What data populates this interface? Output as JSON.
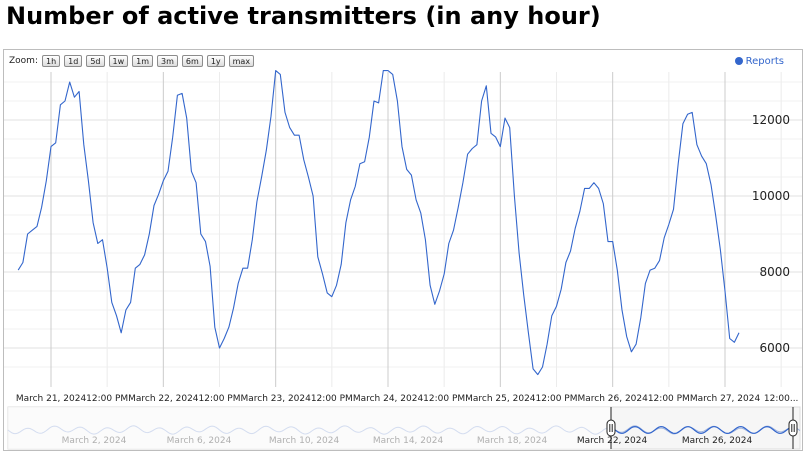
{
  "page": {
    "title": "Number of active transmitters (in any hour)"
  },
  "zoom": {
    "label": "Zoom:",
    "buttons": [
      "1h",
      "1d",
      "5d",
      "1w",
      "1m",
      "3m",
      "6m",
      "1y",
      "max"
    ]
  },
  "legend": {
    "series_name": "Reports",
    "color": "#3366cc"
  },
  "navigator": {
    "labels": [
      "March 2, 2024",
      "March 6, 2024",
      "March 10, 2024",
      "March 14, 2024",
      "March 18, 2024",
      "March 22, 2024",
      "March 26, 2024"
    ]
  },
  "chart_data": {
    "type": "line",
    "title": "Number of active transmitters (in any hour)",
    "x_ticks": [
      {
        "value": "2024-03-21 00:00",
        "label": "March 21, 2024"
      },
      {
        "value": "2024-03-21 12:00",
        "label": "12:00 PM"
      },
      {
        "value": "2024-03-22 00:00",
        "label": "March 22, 2024"
      },
      {
        "value": "2024-03-22 12:00",
        "label": "12:00 PM"
      },
      {
        "value": "2024-03-23 00:00",
        "label": "March 23, 2024"
      },
      {
        "value": "2024-03-23 12:00",
        "label": "12:00 PM"
      },
      {
        "value": "2024-03-24 00:00",
        "label": "March 24, 2024"
      },
      {
        "value": "2024-03-24 12:00",
        "label": "12:00 PM"
      },
      {
        "value": "2024-03-25 00:00",
        "label": "March 25, 2024"
      },
      {
        "value": "2024-03-25 12:00",
        "label": "12:00 PM"
      },
      {
        "value": "2024-03-26 00:00",
        "label": "March 26, 2024"
      },
      {
        "value": "2024-03-26 12:00",
        "label": "12:00 PM"
      },
      {
        "value": "2024-03-27 00:00",
        "label": "March 27, 2024"
      },
      {
        "value": "2024-03-27 12:00",
        "label": "12:00..."
      }
    ],
    "y_ticks": [
      6000,
      8000,
      10000,
      12000
    ],
    "ylim": [
      5200,
      13400
    ],
    "xlim": [
      "2024-03-20 17:00",
      "2024-03-28 00:00"
    ],
    "grid": true,
    "legend_position": "top-right",
    "series": [
      {
        "name": "Reports",
        "color": "#3366cc",
        "points": [
          [
            "2024-03-20 17:00",
            8050
          ],
          [
            "2024-03-20 18:00",
            8250
          ],
          [
            "2024-03-20 19:00",
            9000
          ],
          [
            "2024-03-20 20:00",
            9100
          ],
          [
            "2024-03-20 21:00",
            9200
          ],
          [
            "2024-03-20 22:00",
            9700
          ],
          [
            "2024-03-20 23:00",
            10400
          ],
          [
            "2024-03-21 00:00",
            11300
          ],
          [
            "2024-03-21 01:00",
            11400
          ],
          [
            "2024-03-21 02:00",
            12400
          ],
          [
            "2024-03-21 03:00",
            12500
          ],
          [
            "2024-03-21 04:00",
            13000
          ],
          [
            "2024-03-21 05:00",
            12600
          ],
          [
            "2024-03-21 06:00",
            12750
          ],
          [
            "2024-03-21 07:00",
            11350
          ],
          [
            "2024-03-21 08:00",
            10400
          ],
          [
            "2024-03-21 09:00",
            9300
          ],
          [
            "2024-03-21 10:00",
            8750
          ],
          [
            "2024-03-21 11:00",
            8850
          ],
          [
            "2024-03-21 12:00",
            8100
          ],
          [
            "2024-03-21 13:00",
            7200
          ],
          [
            "2024-03-21 14:00",
            6850
          ],
          [
            "2024-03-21 15:00",
            6400
          ],
          [
            "2024-03-21 16:00",
            7000
          ],
          [
            "2024-03-21 17:00",
            7200
          ],
          [
            "2024-03-21 18:00",
            8100
          ],
          [
            "2024-03-21 19:00",
            8200
          ],
          [
            "2024-03-21 20:00",
            8450
          ],
          [
            "2024-03-21 21:00",
            9000
          ],
          [
            "2024-03-21 22:00",
            9750
          ],
          [
            "2024-03-21 23:00",
            10050
          ],
          [
            "2024-03-22 00:00",
            10400
          ],
          [
            "2024-03-22 01:00",
            10650
          ],
          [
            "2024-03-22 02:00",
            11550
          ],
          [
            "2024-03-22 03:00",
            12650
          ],
          [
            "2024-03-22 04:00",
            12700
          ],
          [
            "2024-03-22 05:00",
            12050
          ],
          [
            "2024-03-22 06:00",
            10650
          ],
          [
            "2024-03-22 07:00",
            10350
          ],
          [
            "2024-03-22 08:00",
            9000
          ],
          [
            "2024-03-22 09:00",
            8800
          ],
          [
            "2024-03-22 10:00",
            8150
          ],
          [
            "2024-03-22 11:00",
            6550
          ],
          [
            "2024-03-22 12:00",
            6000
          ],
          [
            "2024-03-22 13:00",
            6250
          ],
          [
            "2024-03-22 14:00",
            6550
          ],
          [
            "2024-03-22 15:00",
            7050
          ],
          [
            "2024-03-22 16:00",
            7700
          ],
          [
            "2024-03-22 17:00",
            8100
          ],
          [
            "2024-03-22 18:00",
            8100
          ],
          [
            "2024-03-22 19:00",
            8850
          ],
          [
            "2024-03-22 20:00",
            9850
          ],
          [
            "2024-03-22 21:00",
            10500
          ],
          [
            "2024-03-22 22:00",
            11200
          ],
          [
            "2024-03-22 23:00",
            12100
          ],
          [
            "2024-03-23 00:00",
            13300
          ],
          [
            "2024-03-23 01:00",
            13200
          ],
          [
            "2024-03-23 02:00",
            12200
          ],
          [
            "2024-03-23 03:00",
            11800
          ],
          [
            "2024-03-23 04:00",
            11600
          ],
          [
            "2024-03-23 05:00",
            11600
          ],
          [
            "2024-03-23 06:00",
            10950
          ],
          [
            "2024-03-23 07:00",
            10500
          ],
          [
            "2024-03-23 08:00",
            10000
          ],
          [
            "2024-03-23 09:00",
            8400
          ],
          [
            "2024-03-23 10:00",
            7950
          ],
          [
            "2024-03-23 11:00",
            7450
          ],
          [
            "2024-03-23 12:00",
            7350
          ],
          [
            "2024-03-23 13:00",
            7650
          ],
          [
            "2024-03-23 14:00",
            8200
          ],
          [
            "2024-03-23 15:00",
            9300
          ],
          [
            "2024-03-23 16:00",
            9900
          ],
          [
            "2024-03-23 17:00",
            10250
          ],
          [
            "2024-03-23 18:00",
            10850
          ],
          [
            "2024-03-23 19:00",
            10900
          ],
          [
            "2024-03-23 20:00",
            11550
          ],
          [
            "2024-03-23 21:00",
            12500
          ],
          [
            "2024-03-23 22:00",
            12450
          ],
          [
            "2024-03-23 23:00",
            13300
          ],
          [
            "2024-03-24 00:00",
            13300
          ],
          [
            "2024-03-24 01:00",
            13200
          ],
          [
            "2024-03-24 02:00",
            12500
          ],
          [
            "2024-03-24 03:00",
            11300
          ],
          [
            "2024-03-24 04:00",
            10700
          ],
          [
            "2024-03-24 05:00",
            10550
          ],
          [
            "2024-03-24 06:00",
            9900
          ],
          [
            "2024-03-24 07:00",
            9550
          ],
          [
            "2024-03-24 08:00",
            8850
          ],
          [
            "2024-03-24 09:00",
            7650
          ],
          [
            "2024-03-24 10:00",
            7150
          ],
          [
            "2024-03-24 11:00",
            7500
          ],
          [
            "2024-03-24 12:00",
            7950
          ],
          [
            "2024-03-24 13:00",
            8750
          ],
          [
            "2024-03-24 14:00",
            9100
          ],
          [
            "2024-03-24 15:00",
            9700
          ],
          [
            "2024-03-24 16:00",
            10350
          ],
          [
            "2024-03-24 17:00",
            11100
          ],
          [
            "2024-03-24 18:00",
            11250
          ],
          [
            "2024-03-24 19:00",
            11350
          ],
          [
            "2024-03-24 20:00",
            12500
          ],
          [
            "2024-03-24 21:00",
            12900
          ],
          [
            "2024-03-24 22:00",
            11650
          ],
          [
            "2024-03-24 23:00",
            11550
          ],
          [
            "2024-03-25 00:00",
            11300
          ],
          [
            "2024-03-25 01:00",
            12050
          ],
          [
            "2024-03-25 02:00",
            11800
          ],
          [
            "2024-03-25 03:00",
            10000
          ],
          [
            "2024-03-25 04:00",
            8500
          ],
          [
            "2024-03-25 05:00",
            7400
          ],
          [
            "2024-03-25 06:00",
            6400
          ],
          [
            "2024-03-25 07:00",
            5450
          ],
          [
            "2024-03-25 08:00",
            5300
          ],
          [
            "2024-03-25 09:00",
            5500
          ],
          [
            "2024-03-25 10:00",
            6100
          ],
          [
            "2024-03-25 11:00",
            6850
          ],
          [
            "2024-03-25 12:00",
            7100
          ],
          [
            "2024-03-25 13:00",
            7550
          ],
          [
            "2024-03-25 14:00",
            8250
          ],
          [
            "2024-03-25 15:00",
            8550
          ],
          [
            "2024-03-25 16:00",
            9150
          ],
          [
            "2024-03-25 17:00",
            9600
          ],
          [
            "2024-03-25 18:00",
            10200
          ],
          [
            "2024-03-25 19:00",
            10200
          ],
          [
            "2024-03-25 20:00",
            10350
          ],
          [
            "2024-03-25 21:00",
            10200
          ],
          [
            "2024-03-25 22:00",
            9800
          ],
          [
            "2024-03-25 23:00",
            8800
          ],
          [
            "2024-03-26 00:00",
            8800
          ],
          [
            "2024-03-26 01:00",
            8050
          ],
          [
            "2024-03-26 02:00",
            7000
          ],
          [
            "2024-03-26 03:00",
            6300
          ],
          [
            "2024-03-26 04:00",
            5900
          ],
          [
            "2024-03-26 05:00",
            6100
          ],
          [
            "2024-03-26 06:00",
            6800
          ],
          [
            "2024-03-26 07:00",
            7700
          ],
          [
            "2024-03-26 08:00",
            8050
          ],
          [
            "2024-03-26 09:00",
            8100
          ],
          [
            "2024-03-26 10:00",
            8300
          ],
          [
            "2024-03-26 11:00",
            8900
          ],
          [
            "2024-03-26 12:00",
            9250
          ],
          [
            "2024-03-26 13:00",
            9650
          ],
          [
            "2024-03-26 14:00",
            10850
          ],
          [
            "2024-03-26 15:00",
            11900
          ],
          [
            "2024-03-26 16:00",
            12150
          ],
          [
            "2024-03-26 17:00",
            12200
          ],
          [
            "2024-03-26 18:00",
            11350
          ],
          [
            "2024-03-26 19:00",
            11050
          ],
          [
            "2024-03-26 20:00",
            10850
          ],
          [
            "2024-03-26 21:00",
            10300
          ],
          [
            "2024-03-26 22:00",
            9500
          ],
          [
            "2024-03-26 23:00",
            8600
          ],
          [
            "2024-03-27 00:00",
            7500
          ],
          [
            "2024-03-27 01:00",
            6250
          ],
          [
            "2024-03-27 02:00",
            6150
          ],
          [
            "2024-03-27 03:00",
            6400
          ]
        ]
      }
    ]
  }
}
